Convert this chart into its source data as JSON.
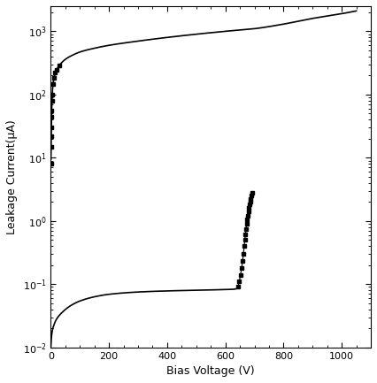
{
  "title": "",
  "xlabel": "Bias Voltage (V)",
  "ylabel": "Leakage Current(μA)",
  "xlim": [
    0,
    1100
  ],
  "ylim": [
    0.01,
    2500
  ],
  "curve_color": "#000000",
  "figsize": [
    4.26,
    4.33
  ],
  "dpi": 100,
  "upper_curve_points_x": [
    0,
    1,
    2,
    3,
    5,
    8,
    12,
    18,
    25,
    35,
    50,
    75,
    100,
    150,
    200,
    300,
    400,
    500,
    600,
    700,
    800,
    900,
    1000,
    1050
  ],
  "upper_curve_points_y": [
    5,
    15,
    30,
    55,
    100,
    150,
    190,
    230,
    270,
    310,
    360,
    420,
    470,
    540,
    600,
    700,
    800,
    900,
    1000,
    1100,
    1300,
    1600,
    1900,
    2100
  ],
  "lower_main_x": [
    0,
    1,
    2,
    5,
    10,
    20,
    40,
    60,
    80,
    100,
    150,
    200,
    300,
    400,
    500,
    600,
    630,
    640
  ],
  "lower_main_y": [
    0.01,
    0.012,
    0.014,
    0.018,
    0.022,
    0.028,
    0.036,
    0.043,
    0.049,
    0.054,
    0.063,
    0.069,
    0.075,
    0.078,
    0.08,
    0.082,
    0.083,
    0.085
  ],
  "lower_breakdown_x": [
    643,
    648,
    652,
    656,
    659,
    662,
    665,
    667,
    669,
    671,
    673,
    675,
    677,
    679,
    681,
    683,
    685,
    687,
    689,
    691
  ],
  "lower_breakdown_y": [
    0.09,
    0.11,
    0.14,
    0.18,
    0.23,
    0.3,
    0.4,
    0.5,
    0.62,
    0.75,
    0.9,
    1.05,
    1.2,
    1.4,
    1.6,
    1.8,
    2.0,
    2.2,
    2.5,
    2.8
  ],
  "upper_dot_x": [
    0.5,
    1,
    1.5,
    2,
    2.5,
    3,
    4,
    5,
    7,
    10,
    15,
    20,
    30
  ],
  "upper_dot_y": [
    8,
    15,
    22,
    30,
    45,
    55,
    80,
    100,
    145,
    185,
    220,
    245,
    290
  ]
}
